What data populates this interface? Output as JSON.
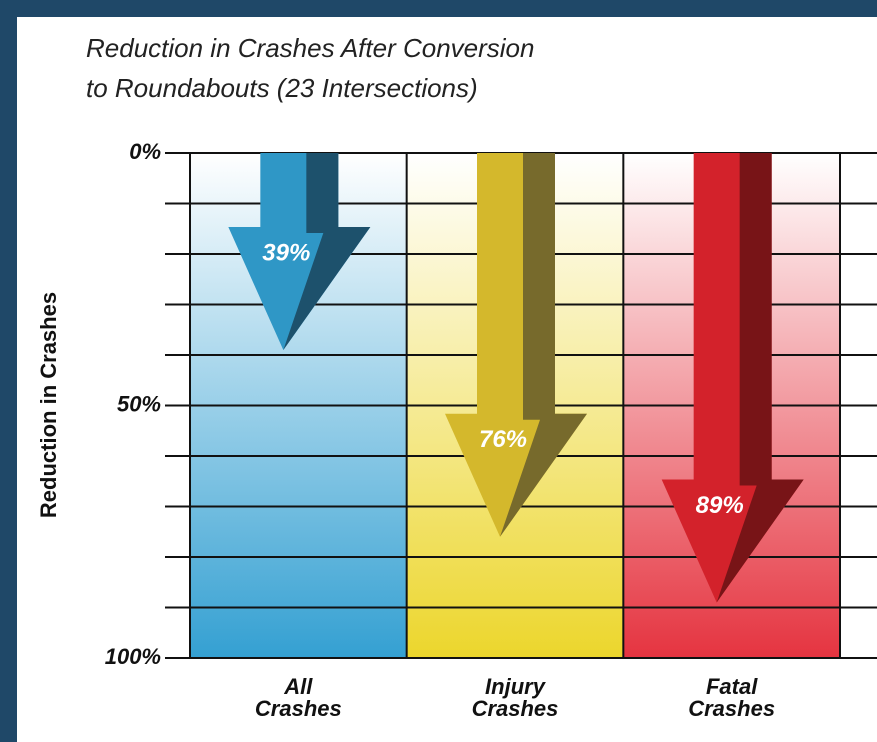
{
  "chart_data": {
    "type": "arrow",
    "title": [
      "Reduction in Crashes After Conversion",
      "to Roundabouts (23 Intersections)"
    ],
    "y_label": "Reduction in Crashes",
    "categories": [
      "All\nCrashes",
      "Injury\nCrashes",
      "Fatal\nCrashes"
    ],
    "values": [
      39,
      76,
      89
    ],
    "value_labels": [
      "39%",
      "76%",
      "89%"
    ],
    "colors": [
      "#2f97c6",
      "#d4b82c",
      "#d3222b"
    ],
    "shade_colors": [
      "#1d516c",
      "#776a2c",
      "#781417"
    ],
    "background_colors": [
      "#34a0d2",
      "#ecd62c",
      "#e53440"
    ],
    "ylim": [
      0,
      100
    ],
    "y_reversed": true,
    "yticks": [
      {
        "value": 0,
        "label": "0%"
      },
      {
        "value": 50,
        "label": "50%"
      },
      {
        "value": 100,
        "label": "100%"
      }
    ],
    "minor_yticks": [
      10,
      20,
      30,
      40,
      60,
      70,
      80,
      90
    ],
    "grid": true
  }
}
